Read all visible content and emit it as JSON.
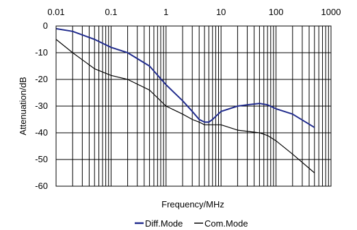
{
  "chart_data": {
    "type": "line",
    "xscale": "log",
    "xlim": [
      0.01,
      1000
    ],
    "ylim": [
      -60,
      0
    ],
    "grid": true,
    "xlabel": "Frequency/MHz",
    "ylabel": "Attenuation/dB",
    "x_ticks": [
      "0.01",
      "0.1",
      "1",
      "10",
      "100",
      "1000"
    ],
    "y_ticks": [
      "0",
      "-10",
      "-20",
      "-30",
      "-40",
      "-50",
      "-60"
    ],
    "legend_position": "bottom",
    "series": [
      {
        "name": "Diff.Mode",
        "color": "#1f2a8c",
        "points": [
          [
            0.01,
            -1
          ],
          [
            0.02,
            -2
          ],
          [
            0.05,
            -5
          ],
          [
            0.1,
            -8
          ],
          [
            0.2,
            -10
          ],
          [
            0.5,
            -15
          ],
          [
            1,
            -22
          ],
          [
            2,
            -28
          ],
          [
            3,
            -32
          ],
          [
            4,
            -35
          ],
          [
            5,
            -36
          ],
          [
            6,
            -36
          ],
          [
            7,
            -35
          ],
          [
            10,
            -32
          ],
          [
            20,
            -30
          ],
          [
            30,
            -29.5
          ],
          [
            50,
            -29
          ],
          [
            70,
            -29.5
          ],
          [
            100,
            -31
          ],
          [
            200,
            -33
          ],
          [
            500,
            -38
          ]
        ]
      },
      {
        "name": "Com.Mode",
        "color": "#000000",
        "points": [
          [
            0.01,
            -5
          ],
          [
            0.02,
            -10
          ],
          [
            0.05,
            -16
          ],
          [
            0.1,
            -18.5
          ],
          [
            0.2,
            -20
          ],
          [
            0.5,
            -24
          ],
          [
            1,
            -30
          ],
          [
            2,
            -33
          ],
          [
            3,
            -35
          ],
          [
            4,
            -36
          ],
          [
            5,
            -37
          ],
          [
            7,
            -37
          ],
          [
            10,
            -37
          ],
          [
            20,
            -39
          ],
          [
            50,
            -40
          ],
          [
            70,
            -41
          ],
          [
            100,
            -43
          ],
          [
            200,
            -48
          ],
          [
            500,
            -55
          ]
        ]
      }
    ]
  }
}
